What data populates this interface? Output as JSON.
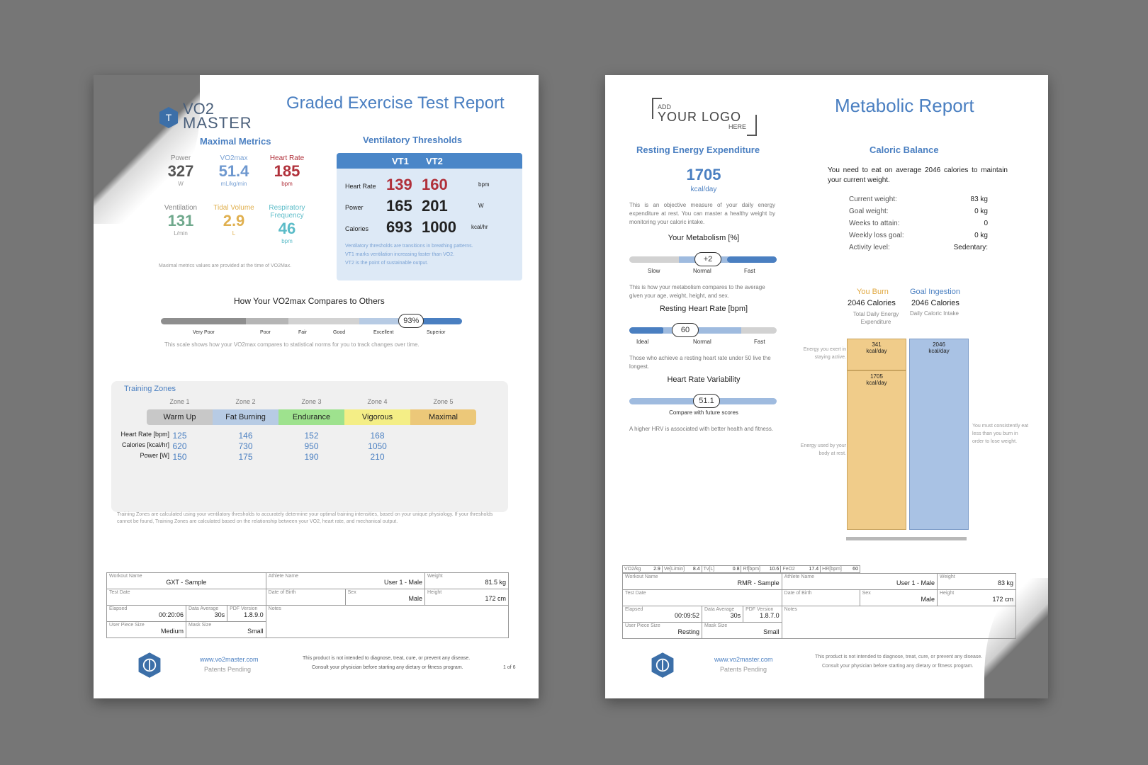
{
  "left": {
    "brand_top": "VO2",
    "brand_bottom": "MASTER",
    "title": "Graded Exercise Test Report",
    "maximal": {
      "heading": "Maximal Metrics",
      "metrics": [
        {
          "label": "Power",
          "value": "327",
          "unit": "W"
        },
        {
          "label": "VO2max",
          "value": "51.4",
          "unit": "mL/kg/min"
        },
        {
          "label": "Heart Rate",
          "value": "185",
          "unit": "bpm"
        },
        {
          "label": "Ventilation",
          "value": "131",
          "unit": "L/min"
        },
        {
          "label": "Tidal Volume",
          "value": "2.9",
          "unit": "L"
        },
        {
          "label": "Respiratory Frequency",
          "value": "46",
          "unit": "bpm"
        }
      ],
      "note": "Maximal metrics values are provided at the time of VO2Max."
    },
    "vt": {
      "heading": "Ventilatory Thresholds",
      "col1": "VT1",
      "col2": "VT2",
      "rows": [
        {
          "label": "Heart Rate",
          "v1": "139",
          "v2": "160",
          "unit": "bpm"
        },
        {
          "label": "Power",
          "v1": "165",
          "v2": "201",
          "unit": "W"
        },
        {
          "label": "Calories",
          "v1": "693",
          "v2": "1000",
          "unit": "kcal/hr"
        }
      ],
      "notes": [
        "Ventilatory thresholds are transitions in breathing patterns.",
        "VT1 marks ventilation increasing faster than VO2.",
        "VT2 is the point of sustainable output."
      ]
    },
    "compare": {
      "heading": "How Your VO2max Compares to Others",
      "percent": "93%",
      "percent_value": 93,
      "labels": [
        "Very Poor",
        "Poor",
        "Fair",
        "Good",
        "Excellent",
        "Superior"
      ],
      "note": "This scale shows how your VO2max compares to statistical norms for you to track changes over time."
    },
    "zones": {
      "heading": "Training Zones",
      "zones": [
        "Zone 1",
        "Zone 2",
        "Zone 3",
        "Zone 4",
        "Zone 5"
      ],
      "names": [
        "Warm Up",
        "Fat Burning",
        "Endurance",
        "Vigorous",
        "Maximal"
      ],
      "colors": [
        "#c8c8c8",
        "#b7cbe4",
        "#9ee28e",
        "#f4ee86",
        "#ecc879"
      ],
      "rows": [
        {
          "label": "Heart Rate [bpm]",
          "values": [
            "125",
            "146",
            "152",
            "168"
          ]
        },
        {
          "label": "Calories [kcal/hr]",
          "values": [
            "620",
            "730",
            "950",
            "1050"
          ]
        },
        {
          "label": "Power [W]",
          "values": [
            "150",
            "175",
            "190",
            "210"
          ]
        }
      ],
      "note": "Training Zones are calculated using your ventilatory thresholds to accurately determine your optimal training intensities, based on your unique physiology. If your thresholds cannot be found, Training Zones are calculated based on the relationship between your VO2, heart rate, and mechanical output."
    },
    "meta": {
      "workout_name_k": "Workout Name",
      "workout_name": "GXT - Sample",
      "athlete_k": "Athlete Name",
      "athlete": "User 1 - Male",
      "weight_k": "Weight",
      "weight": "81.5 kg",
      "test_date_k": "Test Date",
      "dob_k": "Date of Birth",
      "sex_k": "Sex",
      "sex": "Male",
      "height_k": "Height",
      "height": "172 cm",
      "elapsed_k": "Elapsed",
      "elapsed": "00:20:06",
      "avg_k": "Data Average",
      "avg": "30s",
      "pdf_k": "PDF Version",
      "pdf": "1.8.9.0",
      "notes_k": "Notes",
      "piece_k": "User Piece Size",
      "piece": "Medium",
      "mask_k": "Mask Size",
      "mask": "Small"
    },
    "footer": {
      "url": "www.vo2master.com",
      "patents": "Patents Pending",
      "disc1": "This product is not intended to diagnose, treat, cure, or prevent any disease.",
      "disc2": "Consult your physician before starting any dietary or fitness program.",
      "page": "1 of 6"
    }
  },
  "right": {
    "logo_add": "ADD",
    "logo_main": "YOUR LOGO",
    "logo_here": "HERE",
    "title": "Metabolic Report",
    "ree": {
      "heading": "Resting Energy Expenditure",
      "value": "1705",
      "unit": "kcal/day",
      "desc": "This is an objective measure of your daily energy expenditure at rest. You can master a healthy weight by monitoring your caloric intake."
    },
    "metab": {
      "heading": "Your Metabolism [%]",
      "pill": "+2",
      "labels": [
        "Slow",
        "Normal",
        "Fast"
      ],
      "note": "This is how your metabolism compares to the average given your age, weight, height, and sex."
    },
    "rhr": {
      "heading": "Resting Heart Rate [bpm]",
      "pill": "60",
      "labels": [
        "Ideal",
        "Normal",
        "Fast"
      ],
      "note": "Those who achieve a resting heart rate under 50 live the longest."
    },
    "hrv": {
      "heading": "Heart Rate Variability",
      "pill": "51.1",
      "sub": "Compare with future scores",
      "note": "A higher HRV is associated with better health and fitness."
    },
    "caloric": {
      "heading": "Caloric Balance",
      "intro": "You need to eat on average 2046 calories to maintain your current weight.",
      "rows": [
        {
          "k": "Current weight:",
          "v": "83 kg"
        },
        {
          "k": "Goal weight:",
          "v": "0 kg"
        },
        {
          "k": "Weeks to attain:",
          "v": "0"
        },
        {
          "k": "Weekly loss goal:",
          "v": "0 kg"
        },
        {
          "k": "Activity level:",
          "v": "Sedentary:"
        }
      ],
      "burn_head": "You Burn",
      "burn_val": "2046 Calories",
      "burn_sub": "Total Daily Energy Expenditure",
      "goal_head": "Goal Ingestion",
      "goal_val": "2046 Calories",
      "goal_sub": "Daily Caloric Intake",
      "seg_active": "341",
      "seg_rest": "1705",
      "seg_goal": "2046",
      "seg_unit": "kcal/day",
      "note_active": "Energy you exert in staying active.",
      "note_rest": "Energy used by your body at rest.",
      "note_right": "You must consistently eat less than you burn in order to lose weight."
    },
    "metrics_strip": [
      {
        "k": "VO2/kg",
        "v": "2.9"
      },
      {
        "k": "Ve[L/min]",
        "v": "8.4"
      },
      {
        "k": "Tv[L]",
        "v": "0.8"
      },
      {
        "k": "Rf[bpm]",
        "v": "10.6"
      },
      {
        "k": "FeO2",
        "v": "17.4"
      },
      {
        "k": "HR[bpm]",
        "v": "60"
      }
    ],
    "meta": {
      "workout_name_k": "Workout Name",
      "workout_name": "RMR - Sample",
      "athlete_k": "Athlete Name",
      "athlete": "User 1 - Male",
      "weight_k": "Weight",
      "weight": "83 kg",
      "test_date_k": "Test Date",
      "dob_k": "Date of Birth",
      "sex_k": "Sex",
      "sex": "Male",
      "height_k": "Height",
      "height": "172 cm",
      "elapsed_k": "Elapsed",
      "elapsed": "00:09:52",
      "avg_k": "Data Average",
      "avg": "30s",
      "pdf_k": "PDF Version",
      "pdf": "1.8.7.0",
      "notes_k": "Notes",
      "piece_k": "User Piece Size",
      "piece": "Resting",
      "mask_k": "Mask Size",
      "mask": "Small"
    },
    "footer": {
      "url": "www.vo2master.com",
      "patents": "Patents Pending",
      "disc1": "This product is not intended to diagnose, treat, cure, or prevent any disease.",
      "disc2": "Consult your physician before starting any dietary or fitness program."
    }
  }
}
